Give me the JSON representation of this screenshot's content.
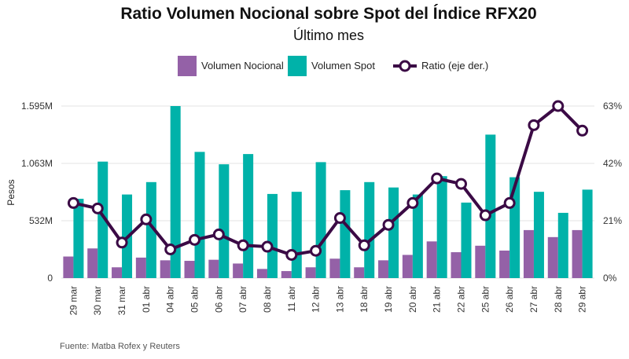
{
  "chart_data": {
    "type": "bar",
    "title": "Ratio Volumen Nocional sobre Spot del Índice RFX20",
    "subtitle": "Último mes",
    "ylabel": "Pesos",
    "source": "Fuente: Matba Rofex y Reuters",
    "categories": [
      "29 mar",
      "30 mar",
      "31 mar",
      "01 abr",
      "04 abr",
      "05 abr",
      "06 abr",
      "07 abr",
      "08 abr",
      "11 abr",
      "12 abr",
      "13 abr",
      "18 abr",
      "19 abr",
      "20 abr",
      "21 abr",
      "22 abr",
      "25 abr",
      "26 abr",
      "27 abr",
      "28 abr",
      "29 abr"
    ],
    "y_left": {
      "ticks": [
        0,
        532,
        1063,
        1595
      ],
      "tick_labels": [
        "0",
        "532M",
        "1.063M",
        "1.595M"
      ],
      "range": [
        0,
        1595
      ]
    },
    "y_right": {
      "ticks": [
        0,
        21,
        42,
        63
      ],
      "tick_labels": [
        "0%",
        "21%",
        "42%",
        "63%"
      ],
      "range": [
        0,
        63
      ]
    },
    "legend_placement": "top-center",
    "grid": true,
    "series": [
      {
        "name": "Volumen Nocional",
        "type": "bar",
        "axis": "left",
        "color": "#9461a7",
        "values": [
          200,
          275,
          100,
          190,
          165,
          160,
          170,
          135,
          85,
          65,
          100,
          180,
          100,
          165,
          215,
          340,
          240,
          300,
          255,
          445,
          380,
          445
        ]
      },
      {
        "name": "Volumen Spot",
        "type": "bar",
        "axis": "left",
        "color": "#00b2a9",
        "values": [
          735,
          1080,
          775,
          890,
          1595,
          1170,
          1055,
          1150,
          780,
          800,
          1075,
          815,
          890,
          840,
          775,
          945,
          700,
          1330,
          935,
          800,
          605,
          820
        ]
      },
      {
        "name": "Ratio (eje der.)",
        "type": "line",
        "axis": "right",
        "color": "#3b0a45",
        "values": [
          27.5,
          25.5,
          13,
          21.5,
          10.5,
          14,
          16,
          12,
          11.5,
          8.5,
          10,
          22,
          12,
          19.5,
          27.5,
          36.5,
          34.5,
          23,
          27.5,
          56,
          63,
          54
        ]
      }
    ]
  }
}
